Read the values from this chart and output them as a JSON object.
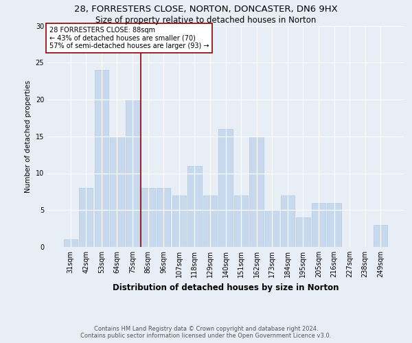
{
  "title": "28, FORRESTERS CLOSE, NORTON, DONCASTER, DN6 9HX",
  "subtitle": "Size of property relative to detached houses in Norton",
  "xlabel": "Distribution of detached houses by size in Norton",
  "ylabel": "Number of detached properties",
  "categories": [
    "31sqm",
    "42sqm",
    "53sqm",
    "64sqm",
    "75sqm",
    "86sqm",
    "96sqm",
    "107sqm",
    "118sqm",
    "129sqm",
    "140sqm",
    "151sqm",
    "162sqm",
    "173sqm",
    "184sqm",
    "195sqm",
    "205sqm",
    "216sqm",
    "227sqm",
    "238sqm",
    "249sqm"
  ],
  "values": [
    1,
    8,
    24,
    15,
    20,
    8,
    8,
    7,
    11,
    7,
    16,
    7,
    15,
    5,
    7,
    4,
    6,
    6,
    0,
    0,
    3
  ],
  "bar_color": "#c8d9ee",
  "bar_edge_color": "#b0c8e0",
  "vline_x_index": 5,
  "vline_color": "#8b0000",
  "annotation_text": "28 FORRESTERS CLOSE: 88sqm\n← 43% of detached houses are smaller (70)\n57% of semi-detached houses are larger (93) →",
  "annotation_box_color": "#ffffff",
  "annotation_box_edge_color": "#8b0000",
  "ylim": [
    0,
    30
  ],
  "yticks": [
    0,
    5,
    10,
    15,
    20,
    25,
    30
  ],
  "footer_line1": "Contains HM Land Registry data © Crown copyright and database right 2024.",
  "footer_line2": "Contains public sector information licensed under the Open Government Licence v3.0.",
  "bg_color": "#e8eef6",
  "title_fontsize": 9.5,
  "subtitle_fontsize": 8.5,
  "ylabel_fontsize": 7.5,
  "xlabel_fontsize": 8.5,
  "tick_fontsize": 7,
  "annot_fontsize": 7
}
